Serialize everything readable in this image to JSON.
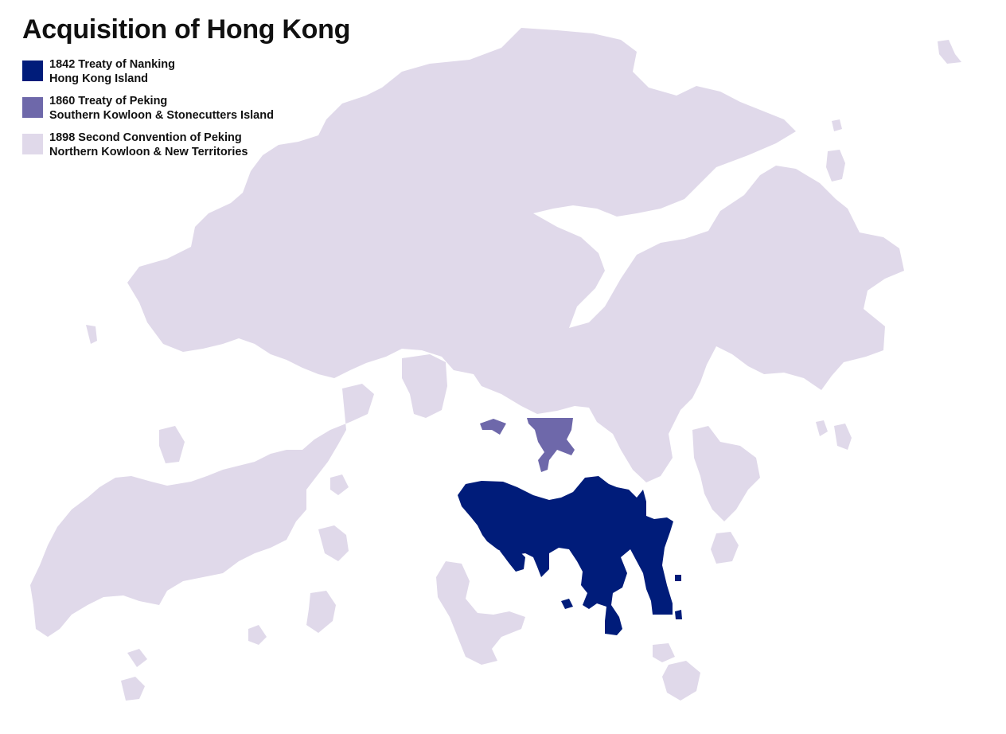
{
  "title": "Acquisition of Hong Kong",
  "legend": [
    {
      "line1": "1842 Treaty of Nanking",
      "line2": "Hong Kong Island",
      "color": "#001c7a"
    },
    {
      "line1": "1860 Treaty of Peking",
      "line2": "Southern Kowloon & Stonecutters Island",
      "color": "#6e68aa"
    },
    {
      "line1": "1898 Second Convention of Peking",
      "line2": "Northern Kowloon & New Territories",
      "color": "#e0d9ea"
    }
  ]
}
